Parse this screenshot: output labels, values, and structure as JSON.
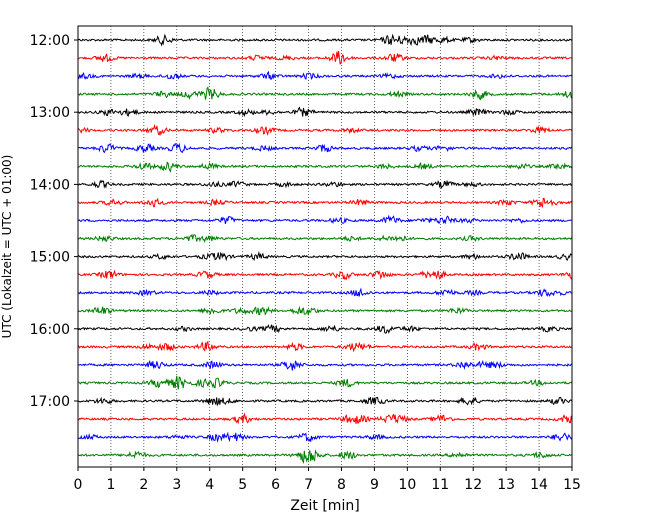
{
  "chart_data": {
    "type": "line",
    "title": "",
    "xlabel": "Zeit  [min]",
    "ylabel": "UTC (Lokalzeit = UTC + 01:00)",
    "xlim": [
      0,
      15
    ],
    "x_ticks": [
      "0",
      "1",
      "2",
      "3",
      "4",
      "5",
      "6",
      "7",
      "8",
      "9",
      "10",
      "11",
      "12",
      "13",
      "14",
      "15"
    ],
    "y_ticks": [
      "12:00",
      "13:00",
      "14:00",
      "15:00",
      "16:00",
      "17:00"
    ],
    "grid": "vertical dotted at each minute",
    "trace_interval_minutes": 15,
    "trace_colors": [
      "#000000",
      "#ff0000",
      "#0000ff",
      "#008000"
    ],
    "series": [
      {
        "start": "12:00",
        "color": "#000000"
      },
      {
        "start": "12:15",
        "color": "#ff0000"
      },
      {
        "start": "12:30",
        "color": "#0000ff"
      },
      {
        "start": "12:45",
        "color": "#008000"
      },
      {
        "start": "13:00",
        "color": "#000000"
      },
      {
        "start": "13:15",
        "color": "#ff0000"
      },
      {
        "start": "13:30",
        "color": "#0000ff"
      },
      {
        "start": "13:45",
        "color": "#008000"
      },
      {
        "start": "14:00",
        "color": "#000000"
      },
      {
        "start": "14:15",
        "color": "#ff0000"
      },
      {
        "start": "14:30",
        "color": "#0000ff"
      },
      {
        "start": "14:45",
        "color": "#008000"
      },
      {
        "start": "15:00",
        "color": "#000000"
      },
      {
        "start": "15:15",
        "color": "#ff0000"
      },
      {
        "start": "15:30",
        "color": "#0000ff"
      },
      {
        "start": "15:45",
        "color": "#008000"
      },
      {
        "start": "16:00",
        "color": "#000000"
      },
      {
        "start": "16:15",
        "color": "#ff0000"
      },
      {
        "start": "16:30",
        "color": "#0000ff"
      },
      {
        "start": "16:45",
        "color": "#008000"
      },
      {
        "start": "17:00",
        "color": "#000000"
      },
      {
        "start": "17:15",
        "color": "#ff0000"
      },
      {
        "start": "17:30",
        "color": "#0000ff"
      },
      {
        "start": "17:45",
        "color": "#008000"
      }
    ]
  }
}
